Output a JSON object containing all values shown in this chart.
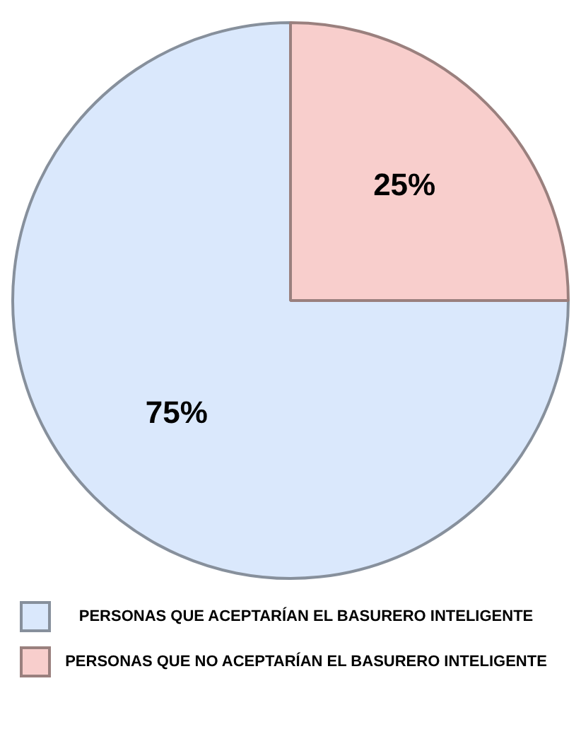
{
  "chart_data": {
    "type": "pie",
    "categories": [
      "PERSONAS QUE ACEPTARÍAN EL BASURERO INTELIGENTE",
      "PERSONAS QUE NO ACEPTARÍAN EL BASURERO INTELIGENTE"
    ],
    "values": [
      75,
      25
    ],
    "colors": [
      "#dae8fc",
      "#f8cecc"
    ],
    "value_labels": [
      "75%",
      "25%"
    ],
    "legend": "bottom"
  }
}
